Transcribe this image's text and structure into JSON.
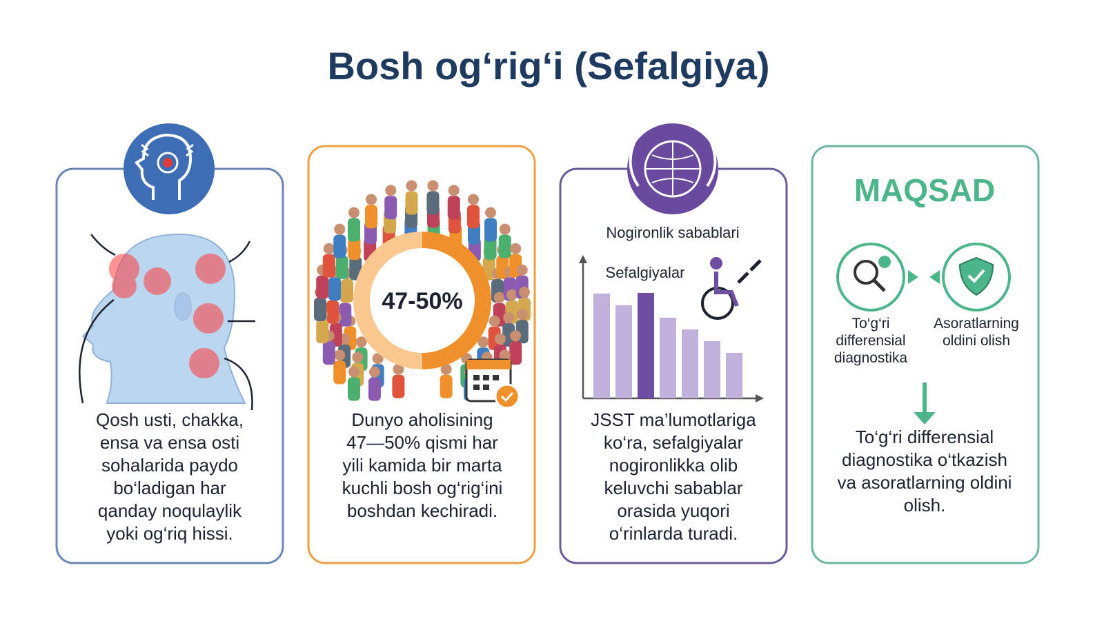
{
  "title": "Bosh og‘rig‘i (Sefalgiya)",
  "panels": [
    {
      "text": [
        "Qosh usti, chakka,",
        "ensa va ensa osti",
        "sohalarida paydo",
        "bo‘ladigan har",
        "qanday noqulaylik",
        "yoki og‘riq hissi."
      ]
    },
    {
      "stat": "47-50%",
      "text": [
        "Dunyo aholisining",
        "47—50% qismi har",
        "yili kamida bir marta",
        "kuchli bosh og‘rig‘ini",
        "boshdan kechiradi."
      ]
    },
    {
      "chart_title": "Nogironlik sabablari",
      "highlight_label": "Sefalgiyalar",
      "text": [
        "JSST ma’lumotlariga",
        "ko‘ra, sefalgiyalar",
        "nogironlikka olib",
        "keluvchi sabablar",
        "orasida yuqori",
        "o‘rinlarda turadi."
      ]
    },
    {
      "heading": "MAQSAD",
      "items": [
        [
          "To‘g‘ri",
          "differensial",
          "diagnostika"
        ],
        [
          "Asoratlarning",
          "oldini olish"
        ]
      ],
      "text": [
        "To‘g‘ri differensial",
        "diagnostika o‘tkazish",
        "va asoratlarning oldini",
        "olish."
      ]
    }
  ]
}
